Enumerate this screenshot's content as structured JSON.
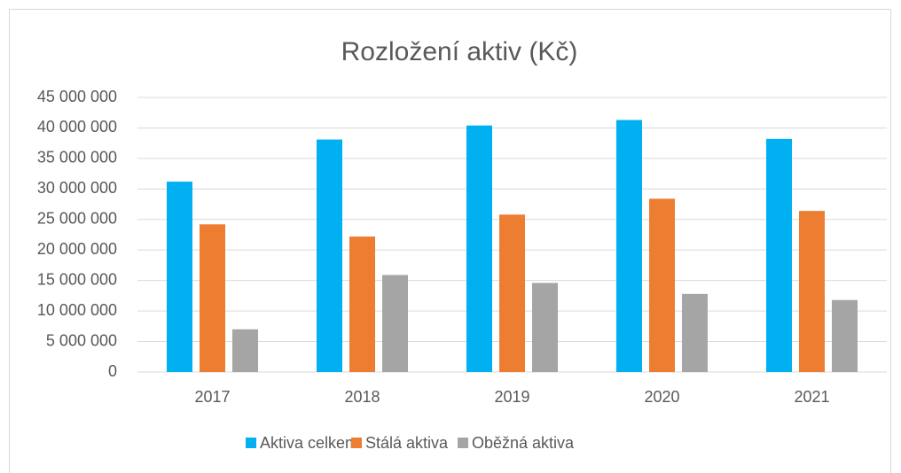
{
  "chart_data": {
    "type": "bar",
    "title": "Rozložení aktiv (Kč)",
    "categories": [
      "2017",
      "2018",
      "2019",
      "2020",
      "2021"
    ],
    "series": [
      {
        "name": "Aktiva celkem",
        "color": "#00b0f0",
        "values": [
          31200000,
          38100000,
          40400000,
          41300000,
          38200000
        ]
      },
      {
        "name": "Stálá aktiva",
        "color": "#ed7d31",
        "values": [
          24200000,
          22200000,
          25800000,
          28400000,
          26400000
        ]
      },
      {
        "name": "Oběžná aktiva",
        "color": "#a5a5a5",
        "values": [
          7000000,
          15900000,
          14600000,
          12800000,
          11800000
        ]
      }
    ],
    "ylim": [
      0,
      45000000
    ],
    "yticks": [
      0,
      {
        "value": 5000000,
        "label": "5 000 000"
      },
      {
        "value": 10000000,
        "label": "10 000 000"
      },
      {
        "value": 15000000,
        "label": "15 000 000"
      },
      {
        "value": 20000000,
        "label": "20 000 000"
      },
      {
        "value": 25000000,
        "label": "25 000 000"
      },
      {
        "value": 30000000,
        "label": "30 000 000"
      },
      {
        "value": 35000000,
        "label": "35 000 000"
      },
      {
        "value": 40000000,
        "label": "40 000 000"
      },
      {
        "value": 45000000,
        "label": "45 000 000"
      }
    ],
    "grid": true,
    "legend": "bottom"
  }
}
